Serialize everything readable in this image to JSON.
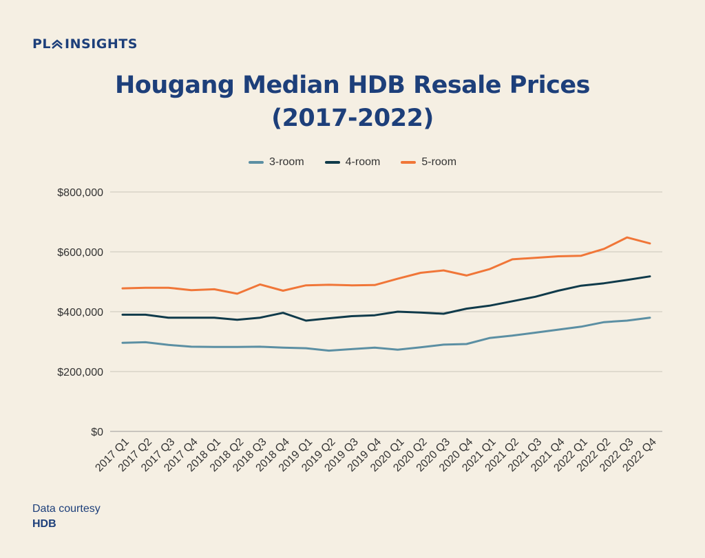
{
  "brand": {
    "name": "INSIGHTS",
    "logo_text": "PL"
  },
  "title_line1": "Hougang Median HDB Resale Prices",
  "title_line2": "(2017-2022)",
  "footer": {
    "line1": "Data courtesy",
    "line2": "HDB"
  },
  "chart_data": {
    "type": "line",
    "title": "Hougang Median HDB Resale Prices (2017-2022)",
    "xlabel": "",
    "ylabel": "",
    "ylim": [
      0,
      800000
    ],
    "yticks": [
      0,
      200000,
      400000,
      600000,
      800000
    ],
    "ytick_labels": [
      "$0",
      "$200,000",
      "$400,000",
      "$600,000",
      "$800,000"
    ],
    "grid": true,
    "legend_position": "top-center",
    "categories": [
      "2017 Q1",
      "2017 Q2",
      "2017 Q3",
      "2017 Q4",
      "2018 Q1",
      "2018 Q2",
      "2018 Q3",
      "2018 Q4",
      "2019 Q1",
      "2019 Q2",
      "2019 Q3",
      "2019 Q4",
      "2020 Q1",
      "2020 Q2",
      "2020 Q3",
      "2020 Q4",
      "2021 Q1",
      "2021 Q2",
      "2021 Q3",
      "2021 Q4",
      "2022 Q1",
      "2022 Q2",
      "2022 Q3",
      "2022 Q4"
    ],
    "series": [
      {
        "name": "3-room",
        "color": "#5b8fa3",
        "values": [
          296000,
          298000,
          289000,
          283000,
          282000,
          282000,
          283000,
          280000,
          278000,
          270000,
          275000,
          280000,
          273000,
          281000,
          290000,
          292000,
          312000,
          320000,
          330000,
          340000,
          350000,
          365000,
          370000,
          380000
        ]
      },
      {
        "name": "4-room",
        "color": "#0f3a4a",
        "values": [
          390000,
          390000,
          380000,
          380000,
          380000,
          373000,
          380000,
          396000,
          370000,
          378000,
          385000,
          388000,
          400000,
          397000,
          393000,
          410000,
          420000,
          435000,
          450000,
          470000,
          487000,
          495000,
          506000,
          518000
        ]
      },
      {
        "name": "5-room",
        "color": "#f07638",
        "values": [
          478000,
          480000,
          480000,
          472000,
          475000,
          460000,
          491000,
          470000,
          488000,
          490000,
          488000,
          489000,
          510000,
          530000,
          538000,
          521000,
          542000,
          575000,
          580000,
          585000,
          587000,
          610000,
          648000,
          628000
        ]
      }
    ]
  }
}
